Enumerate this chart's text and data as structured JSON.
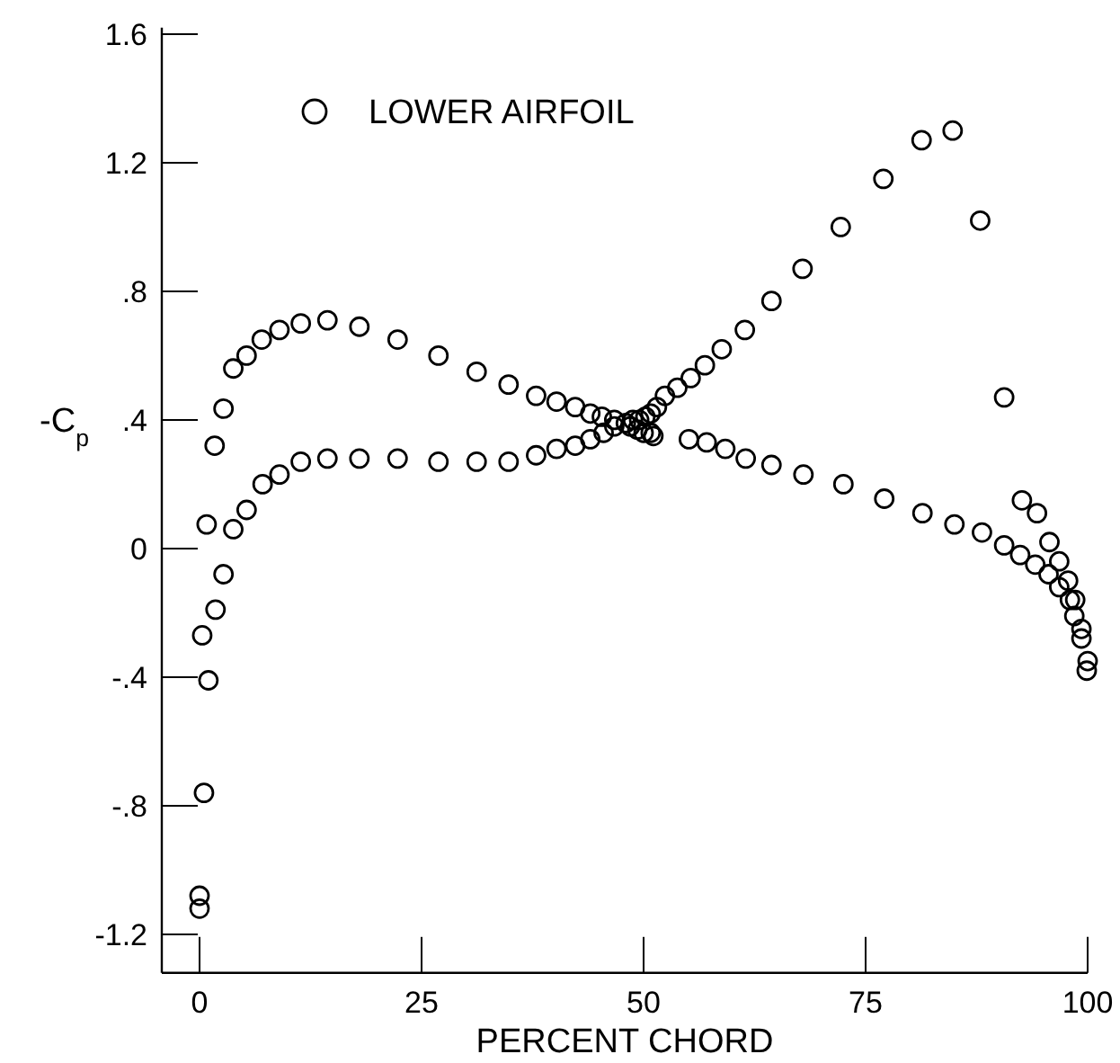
{
  "chart_data": {
    "type": "scatter",
    "xlabel": "PERCENT CHORD",
    "ylabel": "-C$_{p}$",
    "xlim": [
      -4.25,
      100
    ],
    "ylim": [
      -1.32,
      1.62
    ],
    "xticks": [
      0,
      25,
      50,
      75,
      100
    ],
    "yticks": [
      1.6,
      1.2,
      {
        "value": 0.8,
        "label": ".8"
      },
      {
        "value": 0.4,
        "label": ".4"
      },
      0,
      {
        "value": -0.4,
        "label": "-.4"
      },
      {
        "value": -0.8,
        "label": "-.8"
      },
      -1.2
    ],
    "marker": "circle",
    "legend": "top",
    "grid": false,
    "series": [
      {
        "name": "LOWER AIRFOIL",
        "color": "#000000",
        "x": [
          0,
          0,
          0.5,
          1.0,
          0.3,
          1.8,
          2.7,
          0.8,
          3.8,
          5.3,
          7.1,
          9.0,
          11.4,
          14.4,
          18.0,
          22.3,
          26.9,
          31.2,
          34.8,
          37.9,
          40.2,
          42.3,
          44.0,
          45.5,
          46.7,
          1.7,
          2.7,
          3.8,
          5.3,
          7.0,
          9.0,
          11.4,
          14.4,
          18.0,
          22.3,
          26.9,
          31.2,
          34.8,
          37.9,
          40.2,
          42.3,
          44.0,
          45.3,
          46.7,
          48.0,
          48.8,
          49.5,
          50.2,
          50.8,
          51.5,
          52.4,
          53.8,
          55.3,
          56.9,
          58.8,
          61.4,
          64.4,
          67.9,
          72.2,
          77.0,
          81.3,
          84.8,
          87.9,
          90.6,
          92.6,
          94.3,
          95.7,
          96.8,
          97.8,
          98.6,
          99.3,
          100,
          48.5,
          49.3,
          50.0,
          50.8,
          51.1,
          55.1,
          57.1,
          59.2,
          61.5,
          64.4,
          68.0,
          72.5,
          77.1,
          81.4,
          85.0,
          88.1,
          90.6,
          92.4,
          94.1,
          95.6,
          96.8,
          98.0,
          98.5,
          99.3,
          99.9
        ],
        "values": [
          -1.12,
          -1.08,
          -0.76,
          -0.41,
          -0.27,
          -0.19,
          -0.08,
          0.075,
          0.06,
          0.12,
          0.2,
          0.23,
          0.27,
          0.28,
          0.28,
          0.28,
          0.27,
          0.27,
          0.27,
          0.29,
          0.31,
          0.32,
          0.34,
          0.36,
          0.38,
          0.32,
          0.435,
          0.56,
          0.6,
          0.65,
          0.68,
          0.7,
          0.71,
          0.69,
          0.65,
          0.6,
          0.55,
          0.51,
          0.475,
          0.457,
          0.44,
          0.42,
          0.41,
          0.4,
          0.39,
          0.4,
          0.4,
          0.41,
          0.42,
          0.44,
          0.475,
          0.5,
          0.53,
          0.57,
          0.62,
          0.68,
          0.77,
          0.87,
          1.0,
          1.15,
          1.27,
          1.3,
          1.02,
          0.47,
          0.15,
          0.11,
          0.02,
          -0.04,
          -0.1,
          -0.16,
          -0.25,
          -0.35,
          0.38,
          0.37,
          0.36,
          0.36,
          0.35,
          0.34,
          0.33,
          0.31,
          0.28,
          0.26,
          0.23,
          0.2,
          0.155,
          0.11,
          0.075,
          0.05,
          0.01,
          -0.02,
          -0.05,
          -0.08,
          -0.12,
          -0.16,
          -0.21,
          -0.28,
          -0.38
        ]
      }
    ]
  }
}
